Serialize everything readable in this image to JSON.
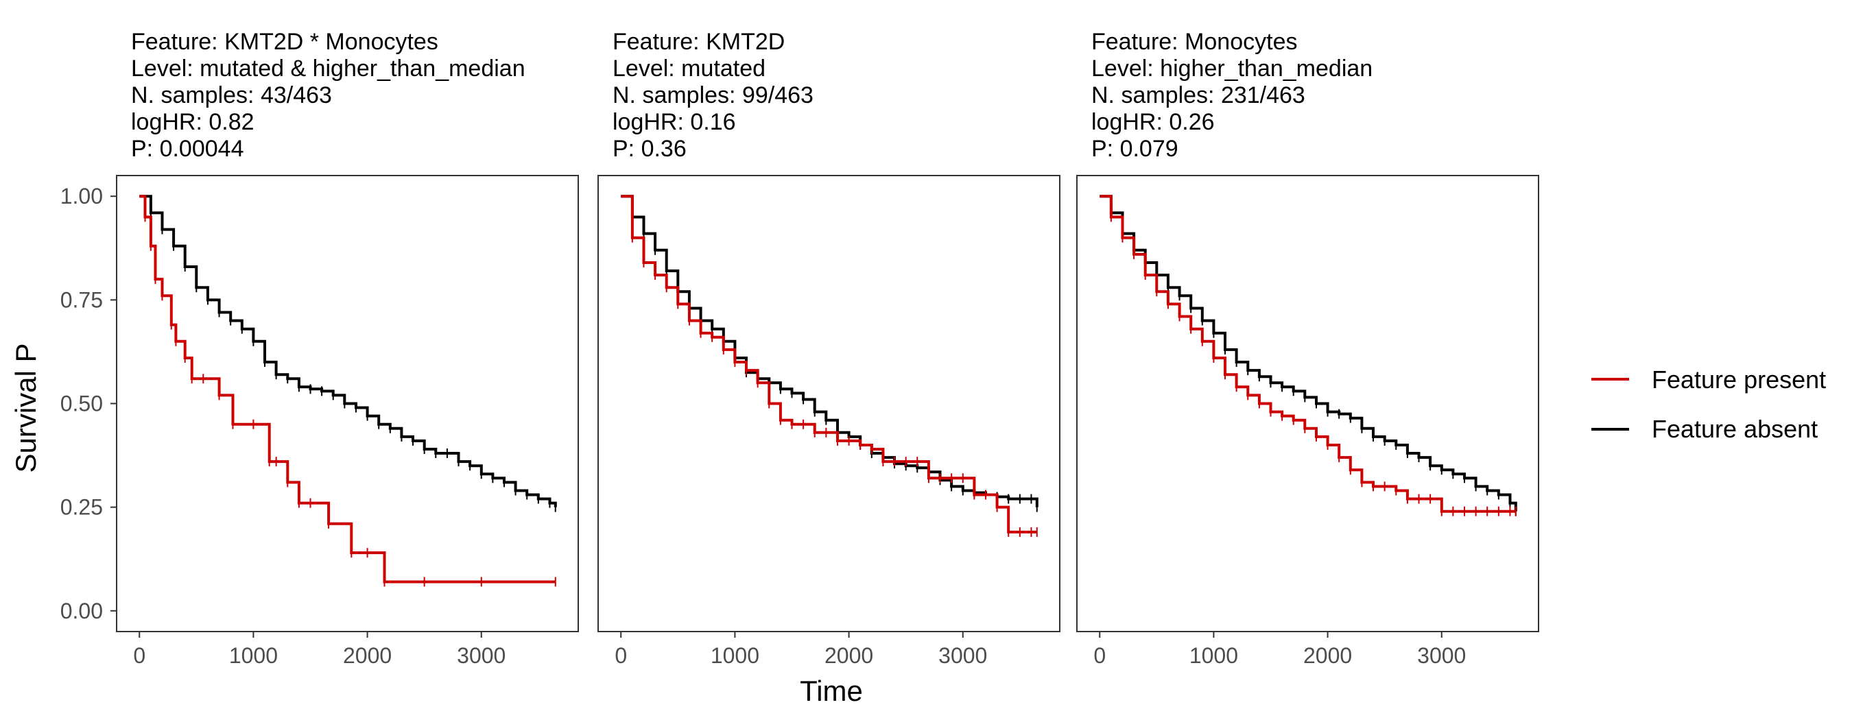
{
  "colors": {
    "present": "#CC0000",
    "absent": "#000000",
    "axis_text": "#4D4D4D",
    "text": "#000000"
  },
  "figure": {
    "ylabel": "Survival P",
    "xlabel": "Time",
    "legend": {
      "placement": "right",
      "entries": [
        "Feature present",
        "Feature absent"
      ]
    }
  },
  "chart_data": [
    {
      "type": "line",
      "title_lines": [
        "Feature: KMT2D * Monocytes",
        "Level: mutated & higher_than_median",
        "N. samples: 43/463",
        "logHR: 0.82",
        "P: 0.00044"
      ],
      "xlim": [
        -200,
        3850
      ],
      "ylim": [
        -0.05,
        1.05
      ],
      "xticks": [
        0,
        1000,
        2000,
        3000
      ],
      "yticks": [
        0.0,
        0.25,
        0.5,
        0.75,
        1.0
      ],
      "ytick_labels": [
        "0.00",
        "0.25",
        "0.50",
        "0.75",
        "1.00"
      ],
      "series": [
        {
          "name": "Feature absent",
          "x": [
            0,
            100,
            200,
            300,
            400,
            500,
            600,
            700,
            800,
            900,
            1000,
            1100,
            1200,
            1300,
            1400,
            1500,
            1600,
            1700,
            1800,
            1900,
            2000,
            2100,
            2200,
            2300,
            2400,
            2500,
            2600,
            2700,
            2800,
            2900,
            3000,
            3100,
            3200,
            3300,
            3400,
            3500,
            3600,
            3650
          ],
          "y": [
            1.0,
            0.96,
            0.92,
            0.88,
            0.83,
            0.78,
            0.75,
            0.72,
            0.7,
            0.68,
            0.65,
            0.6,
            0.57,
            0.56,
            0.54,
            0.535,
            0.53,
            0.52,
            0.5,
            0.49,
            0.47,
            0.45,
            0.44,
            0.42,
            0.41,
            0.39,
            0.38,
            0.38,
            0.36,
            0.35,
            0.33,
            0.32,
            0.31,
            0.29,
            0.28,
            0.27,
            0.26,
            0.25
          ]
        },
        {
          "name": "Feature present",
          "x": [
            0,
            50,
            100,
            140,
            200,
            280,
            320,
            400,
            460,
            560,
            700,
            820,
            1000,
            1140,
            1200,
            1300,
            1400,
            1500,
            1660,
            1860,
            2000,
            2150,
            2500,
            3000,
            3650
          ],
          "y": [
            1.0,
            0.95,
            0.88,
            0.8,
            0.76,
            0.69,
            0.65,
            0.61,
            0.56,
            0.56,
            0.52,
            0.45,
            0.45,
            0.36,
            0.36,
            0.31,
            0.26,
            0.26,
            0.21,
            0.14,
            0.14,
            0.07,
            0.07,
            0.07,
            0.07
          ]
        }
      ]
    },
    {
      "type": "line",
      "title_lines": [
        "Feature: KMT2D",
        "Level: mutated",
        "N. samples: 99/463",
        "logHR: 0.16",
        "P: 0.36"
      ],
      "xlim": [
        -200,
        3850
      ],
      "ylim": [
        -0.05,
        1.05
      ],
      "xticks": [
        0,
        1000,
        2000,
        3000
      ],
      "yticks": [
        0.0,
        0.25,
        0.5,
        0.75,
        1.0
      ],
      "ytick_labels": [
        "0.00",
        "0.25",
        "0.50",
        "0.75",
        "1.00"
      ],
      "series": [
        {
          "name": "Feature absent",
          "x": [
            0,
            100,
            200,
            300,
            400,
            500,
            600,
            700,
            800,
            900,
            1000,
            1100,
            1200,
            1300,
            1400,
            1500,
            1600,
            1700,
            1800,
            1900,
            2000,
            2100,
            2200,
            2300,
            2400,
            2500,
            2600,
            2700,
            2800,
            2900,
            3000,
            3100,
            3200,
            3300,
            3400,
            3500,
            3600,
            3650
          ],
          "y": [
            1.0,
            0.95,
            0.91,
            0.87,
            0.82,
            0.77,
            0.73,
            0.7,
            0.68,
            0.65,
            0.61,
            0.575,
            0.56,
            0.55,
            0.535,
            0.525,
            0.51,
            0.48,
            0.46,
            0.43,
            0.42,
            0.4,
            0.38,
            0.37,
            0.355,
            0.35,
            0.345,
            0.335,
            0.315,
            0.3,
            0.29,
            0.285,
            0.28,
            0.275,
            0.27,
            0.27,
            0.27,
            0.25
          ]
        },
        {
          "name": "Feature present",
          "x": [
            0,
            100,
            200,
            300,
            400,
            500,
            600,
            700,
            800,
            900,
            1000,
            1100,
            1200,
            1300,
            1400,
            1500,
            1600,
            1700,
            1800,
            1900,
            2000,
            2100,
            2200,
            2300,
            2400,
            2500,
            2600,
            2700,
            2800,
            2900,
            3000,
            3100,
            3200,
            3300,
            3400,
            3500,
            3600,
            3650
          ],
          "y": [
            1.0,
            0.9,
            0.84,
            0.81,
            0.78,
            0.74,
            0.7,
            0.67,
            0.66,
            0.63,
            0.6,
            0.58,
            0.55,
            0.5,
            0.46,
            0.45,
            0.45,
            0.43,
            0.43,
            0.41,
            0.41,
            0.4,
            0.39,
            0.36,
            0.36,
            0.36,
            0.36,
            0.32,
            0.32,
            0.32,
            0.32,
            0.28,
            0.28,
            0.25,
            0.19,
            0.19,
            0.19,
            0.19
          ]
        }
      ]
    },
    {
      "type": "line",
      "title_lines": [
        "Feature: Monocytes",
        "Level: higher_than_median",
        "N. samples: 231/463",
        "logHR: 0.26",
        "P: 0.079"
      ],
      "xlim": [
        -200,
        3850
      ],
      "ylim": [
        -0.05,
        1.05
      ],
      "xticks": [
        0,
        1000,
        2000,
        3000
      ],
      "yticks": [
        0.0,
        0.25,
        0.5,
        0.75,
        1.0
      ],
      "ytick_labels": [
        "0.00",
        "0.25",
        "0.50",
        "0.75",
        "1.00"
      ],
      "series": [
        {
          "name": "Feature absent",
          "x": [
            0,
            100,
            200,
            300,
            400,
            500,
            600,
            700,
            800,
            900,
            1000,
            1100,
            1200,
            1300,
            1400,
            1500,
            1600,
            1700,
            1800,
            1900,
            2000,
            2100,
            2200,
            2300,
            2400,
            2500,
            2600,
            2700,
            2800,
            2900,
            3000,
            3100,
            3200,
            3300,
            3400,
            3500,
            3600,
            3650
          ],
          "y": [
            1.0,
            0.96,
            0.91,
            0.87,
            0.84,
            0.81,
            0.78,
            0.76,
            0.73,
            0.7,
            0.67,
            0.63,
            0.6,
            0.58,
            0.565,
            0.55,
            0.54,
            0.53,
            0.515,
            0.5,
            0.48,
            0.475,
            0.465,
            0.44,
            0.42,
            0.41,
            0.4,
            0.38,
            0.37,
            0.35,
            0.34,
            0.33,
            0.32,
            0.3,
            0.29,
            0.28,
            0.26,
            0.24
          ]
        },
        {
          "name": "Feature present",
          "x": [
            0,
            100,
            200,
            300,
            400,
            500,
            600,
            700,
            800,
            900,
            1000,
            1100,
            1200,
            1300,
            1400,
            1500,
            1600,
            1700,
            1800,
            1900,
            2000,
            2100,
            2200,
            2300,
            2400,
            2500,
            2600,
            2700,
            2800,
            2900,
            3000,
            3100,
            3200,
            3300,
            3400,
            3500,
            3600,
            3650
          ],
          "y": [
            1.0,
            0.95,
            0.9,
            0.86,
            0.81,
            0.77,
            0.74,
            0.71,
            0.68,
            0.65,
            0.61,
            0.57,
            0.54,
            0.52,
            0.5,
            0.48,
            0.47,
            0.46,
            0.44,
            0.42,
            0.4,
            0.37,
            0.34,
            0.31,
            0.3,
            0.3,
            0.29,
            0.27,
            0.27,
            0.27,
            0.24,
            0.24,
            0.24,
            0.24,
            0.24,
            0.24,
            0.24,
            0.24
          ]
        }
      ]
    }
  ]
}
